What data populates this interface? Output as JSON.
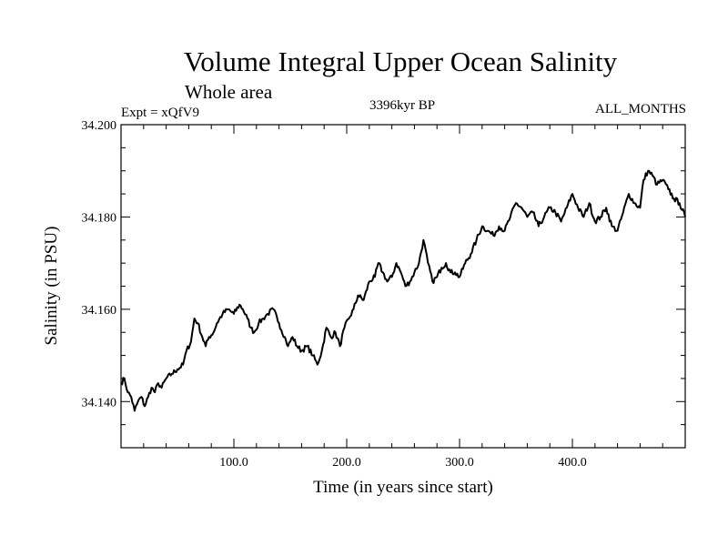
{
  "chart_data": {
    "type": "line",
    "title": "Volume Integral Upper Ocean Salinity",
    "subtitle": "Whole area",
    "experiment": "Expt = xQfV9",
    "period": "3396kyr BP",
    "months": "ALL_MONTHS",
    "xlabel": "Time (in years since start)",
    "ylabel": "Salinity (in PSU)",
    "xlim": [
      0,
      500
    ],
    "ylim": [
      34.13,
      34.2
    ],
    "x_ticks": [
      100,
      200,
      300,
      400
    ],
    "x_tick_labels": [
      "100.0",
      "200.0",
      "300.0",
      "400.0"
    ],
    "y_ticks": [
      34.14,
      34.16,
      34.18,
      34.2
    ],
    "y_tick_labels": [
      "34.140",
      "34.160",
      "34.180",
      "34.200"
    ],
    "series": [
      {
        "name": "Salinity",
        "x": [
          0,
          3,
          6,
          9,
          12,
          15,
          18,
          21,
          24,
          27,
          30,
          33,
          36,
          40,
          45,
          50,
          55,
          58,
          62,
          65,
          68,
          72,
          75,
          78,
          82,
          85,
          90,
          95,
          100,
          105,
          108,
          112,
          115,
          118,
          122,
          126,
          130,
          135,
          140,
          145,
          148,
          152,
          156,
          160,
          165,
          170,
          174,
          178,
          182,
          186,
          190,
          194,
          198,
          202,
          206,
          210,
          215,
          220,
          225,
          228,
          232,
          236,
          240,
          244,
          248,
          252,
          256,
          260,
          264,
          268,
          272,
          276,
          280,
          284,
          288,
          292,
          296,
          300,
          305,
          310,
          315,
          320,
          325,
          330,
          335,
          340,
          345,
          350,
          355,
          360,
          365,
          370,
          375,
          380,
          385,
          390,
          395,
          400,
          405,
          410,
          415,
          420,
          425,
          430,
          435,
          440,
          445,
          450,
          455,
          460,
          463,
          467,
          471,
          475,
          480,
          485,
          490,
          495,
          500
        ],
        "values": [
          34.144,
          34.145,
          34.142,
          34.141,
          34.138,
          34.14,
          34.141,
          34.139,
          34.141,
          34.143,
          34.142,
          34.144,
          34.143,
          34.145,
          34.146,
          34.147,
          34.148,
          34.151,
          34.153,
          34.158,
          34.157,
          34.154,
          34.152,
          34.154,
          34.155,
          34.157,
          34.159,
          34.16,
          34.159,
          34.161,
          34.16,
          34.158,
          34.156,
          34.155,
          34.157,
          34.158,
          34.159,
          34.16,
          34.157,
          34.154,
          34.152,
          34.154,
          34.152,
          34.151,
          34.152,
          34.15,
          34.148,
          34.151,
          34.156,
          34.154,
          34.155,
          34.152,
          34.156,
          34.158,
          34.16,
          34.163,
          34.162,
          34.166,
          34.167,
          34.17,
          34.168,
          34.166,
          34.167,
          34.17,
          34.168,
          34.165,
          34.166,
          34.168,
          34.17,
          34.175,
          34.17,
          34.166,
          34.167,
          34.169,
          34.17,
          34.168,
          34.168,
          34.167,
          34.17,
          34.172,
          34.175,
          34.178,
          34.177,
          34.176,
          34.178,
          34.177,
          34.18,
          34.183,
          34.182,
          34.18,
          34.181,
          34.178,
          34.18,
          34.182,
          34.181,
          34.179,
          34.182,
          34.185,
          34.182,
          34.18,
          34.183,
          34.179,
          34.18,
          34.182,
          34.178,
          34.177,
          34.181,
          34.185,
          34.183,
          34.182,
          34.188,
          34.19,
          34.189,
          34.187,
          34.188,
          34.186,
          34.184,
          34.183,
          34.18
        ]
      }
    ]
  }
}
